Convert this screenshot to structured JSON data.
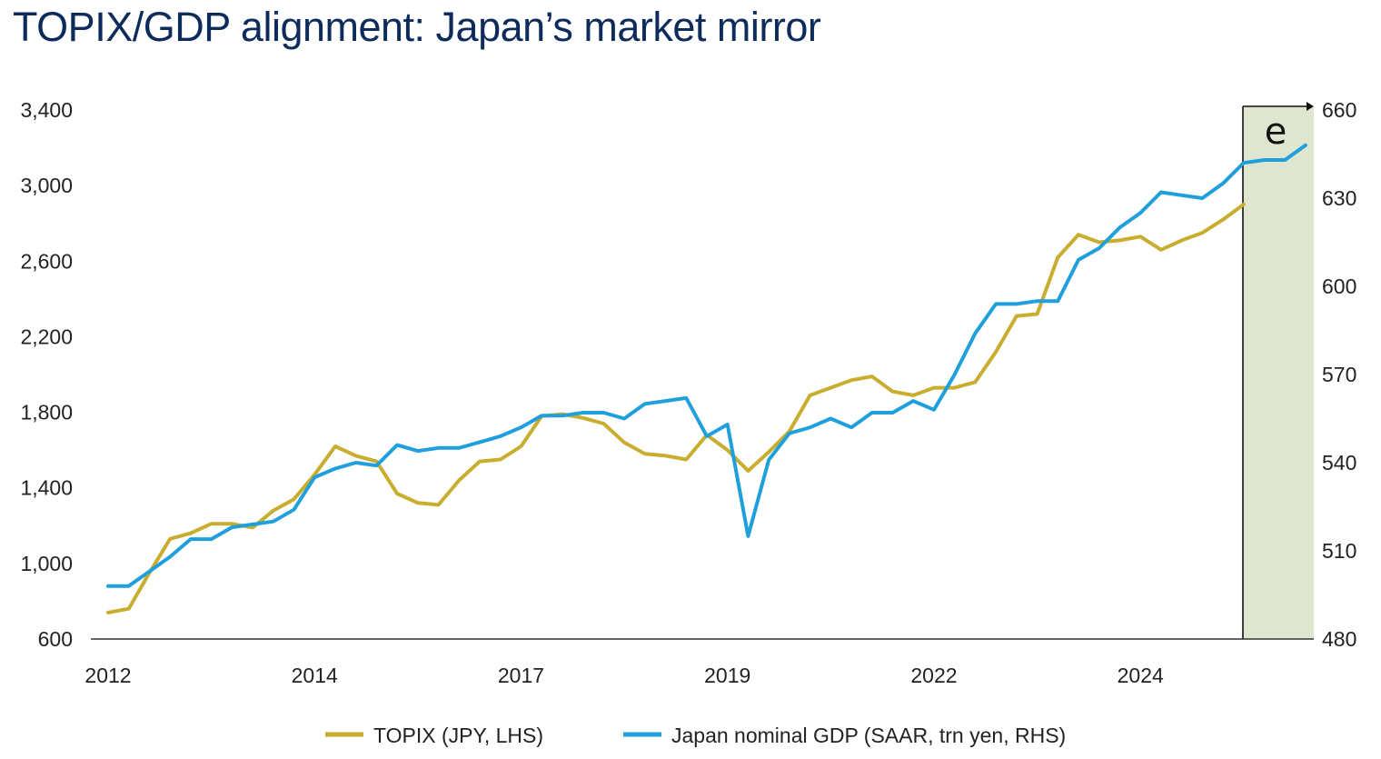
{
  "title": "TOPIX/GDP alignment: Japan’s market mirror",
  "colors": {
    "topix": "#c9ad2e",
    "gdp": "#1fa0dc",
    "estimate_fill": "#dfe6cf",
    "title": "#0d2c5c",
    "axis": "#333333"
  },
  "chart_data": {
    "type": "line",
    "title": "TOPIX/GDP alignment: Japan’s market mirror",
    "x_tick_labels": [
      "2012",
      "2014",
      "2017",
      "2019",
      "2022",
      "2024"
    ],
    "x_tick_quarter_index": [
      0,
      10,
      20,
      30,
      40,
      50
    ],
    "y_left": {
      "lim": [
        600,
        3400
      ],
      "ticks": [
        "600",
        "1,000",
        "1,400",
        "1,800",
        "2,200",
        "2,600",
        "3,000",
        "3,400"
      ],
      "values": [
        600,
        1000,
        1400,
        1800,
        2200,
        2600,
        3000,
        3400
      ]
    },
    "y_right": {
      "lim": [
        480,
        660
      ],
      "ticks": [
        "480",
        "510",
        "540",
        "570",
        "600",
        "630",
        "660"
      ],
      "values": [
        480,
        510,
        540,
        570,
        600,
        630,
        660
      ]
    },
    "grid": false,
    "legend_position": "bottom",
    "estimate_marker": "e",
    "estimate_start_index": 55,
    "series": [
      {
        "name": "TOPIX (JPY, LHS)",
        "axis": "left",
        "values": [
          740,
          760,
          950,
          1130,
          1160,
          1210,
          1210,
          1190,
          1280,
          1340,
          1470,
          1620,
          1570,
          1540,
          1370,
          1320,
          1310,
          1440,
          1540,
          1550,
          1620,
          1780,
          1790,
          1770,
          1740,
          1640,
          1580,
          1570,
          1550,
          1680,
          1600,
          1490,
          1590,
          1700,
          1890,
          1930,
          1970,
          1990,
          1910,
          1890,
          1930,
          1930,
          1960,
          2120,
          2310,
          2320,
          2620,
          2740,
          2700,
          2710,
          2730,
          2660,
          2710,
          2750,
          2820,
          2900
        ]
      },
      {
        "name": "Japan nominal GDP (SAAR, trn yen, RHS)",
        "axis": "right",
        "values": [
          498,
          498,
          503,
          508,
          514,
          514,
          518,
          519,
          520,
          524,
          535,
          538,
          540,
          539,
          546,
          544,
          545,
          545,
          547,
          549,
          552,
          556,
          556,
          557,
          557,
          555,
          560,
          561,
          562,
          549,
          553,
          515,
          541,
          550,
          552,
          555,
          552,
          557,
          557,
          561,
          558,
          570,
          584,
          594,
          594,
          595,
          595,
          609,
          613,
          620,
          625,
          632,
          631,
          630,
          635,
          642,
          643,
          643,
          648
        ]
      }
    ]
  },
  "legend": {
    "topix_label": "TOPIX (JPY, LHS)",
    "gdp_label": "Japan nominal GDP (SAAR, trn yen, RHS)"
  }
}
